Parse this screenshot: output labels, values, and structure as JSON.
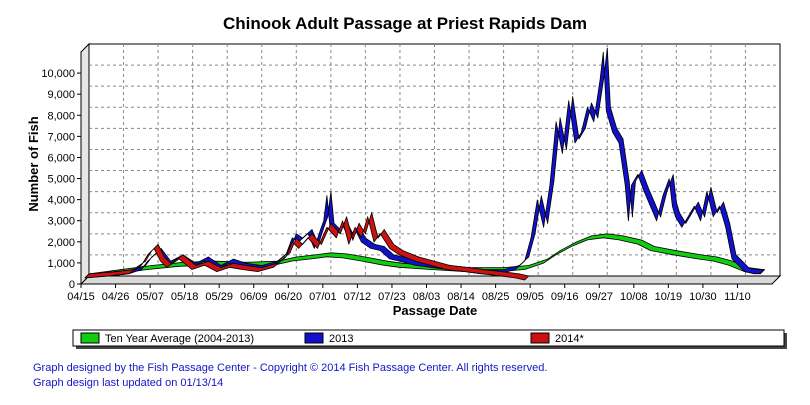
{
  "chart_data": {
    "type": "area",
    "title": "Chinook Adult Passage at Priest Rapids Dam",
    "xlabel": "Passage Date",
    "ylabel": "Number of Fish",
    "ylim": [
      0,
      11000
    ],
    "y_ticks": [
      0,
      1000,
      2000,
      3000,
      4000,
      5000,
      6000,
      7000,
      8000,
      9000,
      10000
    ],
    "y_tick_labels": [
      "0",
      "1,000",
      "2,000",
      "3,000",
      "4,000",
      "5,000",
      "6,000",
      "7,000",
      "8,000",
      "9,000",
      "10,000"
    ],
    "x_tick_labels": [
      "04/15",
      "04/26",
      "05/07",
      "05/18",
      "05/29",
      "06/09",
      "06/20",
      "07/01",
      "07/12",
      "07/23",
      "08/03",
      "08/14",
      "08/25",
      "09/05",
      "09/16",
      "09/27",
      "10/08",
      "10/19",
      "10/30",
      "11/10"
    ],
    "x_tick_days": [
      0,
      11,
      22,
      33,
      44,
      55,
      66,
      77,
      88,
      99,
      110,
      121,
      132,
      143,
      154,
      165,
      176,
      187,
      198,
      209
    ],
    "grid": true,
    "legend_position": "bottom",
    "series": [
      {
        "name": "Ten Year Average (2004-2013)",
        "color": "#11cc11",
        "x": [
          0,
          10,
          20,
          30,
          40,
          50,
          60,
          66,
          72,
          77,
          82,
          88,
          95,
          100,
          110,
          121,
          132,
          140,
          146,
          150,
          155,
          160,
          165,
          170,
          176,
          180,
          187,
          195,
          200,
          205,
          210,
          215
        ],
        "y": [
          100,
          300,
          500,
          650,
          700,
          650,
          700,
          900,
          1000,
          1100,
          1050,
          900,
          700,
          600,
          500,
          400,
          400,
          500,
          800,
          1200,
          1600,
          1900,
          2000,
          1900,
          1700,
          1400,
          1200,
          1000,
          900,
          700,
          400,
          300
        ]
      },
      {
        "name": "2013",
        "color": "#1111cc",
        "x": [
          0,
          8,
          14,
          18,
          20,
          23,
          26,
          30,
          34,
          38,
          42,
          46,
          50,
          55,
          60,
          64,
          66,
          68,
          71,
          73,
          75,
          76,
          77,
          78,
          80,
          82,
          84,
          86,
          88,
          91,
          94,
          97,
          100,
          105,
          110,
          115,
          121,
          126,
          132,
          137,
          140,
          142,
          144,
          146,
          148,
          150,
          152,
          154,
          156,
          158,
          160,
          162,
          164,
          165,
          166,
          168,
          170,
          172,
          173,
          174,
          176,
          178,
          180,
          182,
          184,
          186,
          187,
          188,
          190,
          192,
          194,
          196,
          198,
          200,
          202,
          204,
          206,
          208,
          210,
          213,
          215
        ],
        "y": [
          100,
          200,
          300,
          500,
          900,
          1300,
          700,
          1000,
          600,
          900,
          500,
          800,
          600,
          500,
          700,
          1200,
          2000,
          1800,
          2200,
          1500,
          2400,
          2800,
          4000,
          2500,
          2200,
          2600,
          2000,
          2400,
          1800,
          1500,
          1400,
          1000,
          900,
          700,
          600,
          500,
          400,
          300,
          300,
          500,
          900,
          2000,
          3800,
          2500,
          4500,
          7500,
          6000,
          8500,
          6500,
          7000,
          8200,
          7500,
          9500,
          10800,
          8000,
          7000,
          6500,
          4500,
          2800,
          4500,
          5000,
          4200,
          3500,
          2800,
          4000,
          4800,
          3500,
          3000,
          2500,
          3000,
          3500,
          2800,
          4200,
          3000,
          3500,
          2500,
          1000,
          700,
          400,
          300,
          300
        ]
      },
      {
        "name": "2014*",
        "color": "#cc1111",
        "x": [
          0,
          8,
          14,
          18,
          20,
          22,
          24,
          26,
          30,
          34,
          38,
          42,
          46,
          50,
          55,
          60,
          64,
          66,
          68,
          71,
          74,
          77,
          80,
          82,
          84,
          86,
          88,
          90,
          92,
          94,
          97,
          100,
          105,
          110,
          115,
          121,
          126,
          132,
          137,
          140
        ],
        "y": [
          100,
          200,
          300,
          700,
          1200,
          1500,
          900,
          600,
          1000,
          500,
          700,
          400,
          600,
          500,
          400,
          600,
          1100,
          1800,
          1500,
          2000,
          1500,
          2500,
          2000,
          2800,
          1700,
          2500,
          2000,
          3000,
          1800,
          2200,
          1500,
          1200,
          900,
          700,
          500,
          400,
          300,
          200,
          100,
          0
        ]
      }
    ]
  },
  "legend": {
    "items": [
      {
        "label": "Ten Year Average (2004-2013)",
        "color": "#11cc11"
      },
      {
        "label": "2013",
        "color": "#1111cc"
      },
      {
        "label": "2014*",
        "color": "#cc1111"
      }
    ]
  },
  "credits": {
    "line1": "Graph designed by the Fish Passage Center - Copyright © 2014 Fish Passage Center. All rights reserved.",
    "line2": "Graph design last updated on 01/13/14"
  }
}
